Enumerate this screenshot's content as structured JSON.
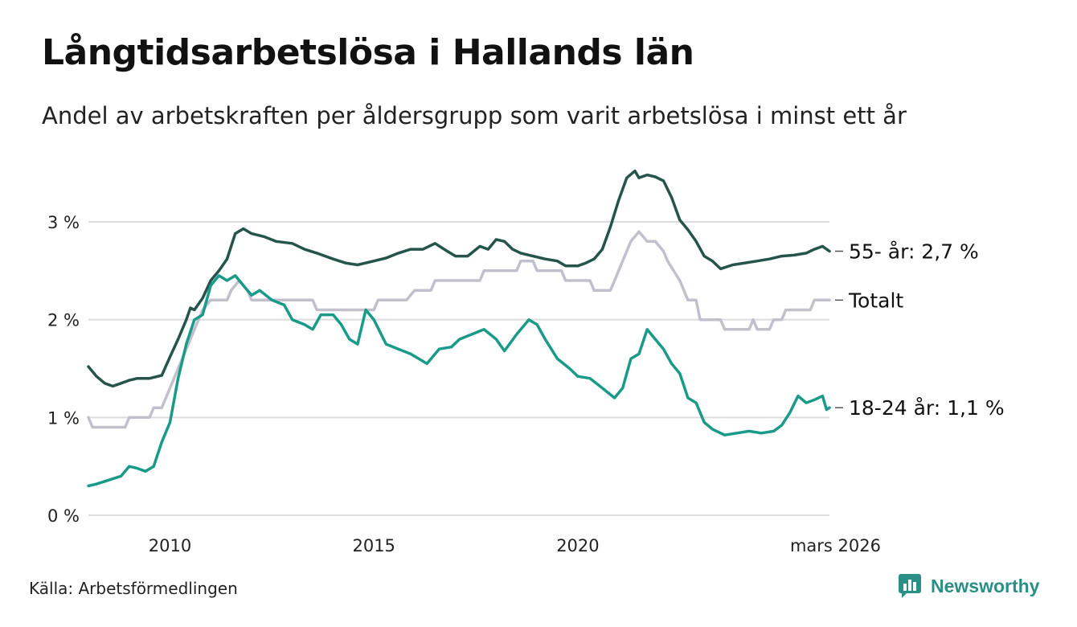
{
  "header": {
    "title": "Långtidsarbetslösa i Hallands län",
    "subtitle": "Andel av arbetskraften per åldersgrupp som varit arbetslösa i minst ett år"
  },
  "footer": {
    "source": "Källa: Arbetsförmedlingen",
    "brand": "Newsworthy"
  },
  "colors": {
    "older": "#24544a",
    "total": "#c2c0cc",
    "young": "#1a9a88",
    "grid": "#dddddd",
    "brand": "#2a8f86"
  },
  "icons": [
    "chart-logo-icon"
  ],
  "chart_data": {
    "type": "line",
    "title": "Långtidsarbetslösa i Hallands län",
    "xlabel": "",
    "ylabel": "",
    "xlim": [
      2008.0,
      2026.17
    ],
    "ylim": [
      0,
      3.5
    ],
    "y_ticks": [
      0,
      1,
      2,
      3
    ],
    "y_tick_labels": [
      "0 %",
      "1 %",
      "2 %",
      "3 %"
    ],
    "x_ticks": [
      2010,
      2015,
      2020,
      2026.17
    ],
    "x_tick_labels": [
      "2010",
      "2015",
      "2020",
      "mars 2026"
    ],
    "grid": true,
    "legend": "end-labels-right",
    "series": [
      {
        "name": "55- år",
        "end_label": "55- år: 2,7 %",
        "points": [
          [
            2008.0,
            1.52
          ],
          [
            2008.2,
            1.42
          ],
          [
            2008.4,
            1.35
          ],
          [
            2008.6,
            1.32
          ],
          [
            2008.8,
            1.35
          ],
          [
            2009.0,
            1.38
          ],
          [
            2009.2,
            1.4
          ],
          [
            2009.5,
            1.4
          ],
          [
            2009.8,
            1.43
          ],
          [
            2010.0,
            1.62
          ],
          [
            2010.2,
            1.8
          ],
          [
            2010.4,
            2.0
          ],
          [
            2010.5,
            2.12
          ],
          [
            2010.6,
            2.1
          ],
          [
            2010.8,
            2.22
          ],
          [
            2011.0,
            2.4
          ],
          [
            2011.2,
            2.5
          ],
          [
            2011.4,
            2.62
          ],
          [
            2011.6,
            2.88
          ],
          [
            2011.8,
            2.93
          ],
          [
            2012.0,
            2.88
          ],
          [
            2012.3,
            2.85
          ],
          [
            2012.6,
            2.8
          ],
          [
            2013.0,
            2.78
          ],
          [
            2013.3,
            2.72
          ],
          [
            2013.6,
            2.68
          ],
          [
            2014.0,
            2.62
          ],
          [
            2014.3,
            2.58
          ],
          [
            2014.6,
            2.56
          ],
          [
            2015.0,
            2.6
          ],
          [
            2015.3,
            2.63
          ],
          [
            2015.6,
            2.68
          ],
          [
            2015.9,
            2.72
          ],
          [
            2016.2,
            2.72
          ],
          [
            2016.5,
            2.78
          ],
          [
            2016.8,
            2.7
          ],
          [
            2017.0,
            2.65
          ],
          [
            2017.3,
            2.65
          ],
          [
            2017.6,
            2.75
          ],
          [
            2017.8,
            2.72
          ],
          [
            2018.0,
            2.82
          ],
          [
            2018.2,
            2.8
          ],
          [
            2018.4,
            2.72
          ],
          [
            2018.6,
            2.68
          ],
          [
            2018.9,
            2.65
          ],
          [
            2019.2,
            2.62
          ],
          [
            2019.5,
            2.6
          ],
          [
            2019.7,
            2.55
          ],
          [
            2020.0,
            2.55
          ],
          [
            2020.2,
            2.58
          ],
          [
            2020.4,
            2.62
          ],
          [
            2020.6,
            2.72
          ],
          [
            2020.8,
            2.95
          ],
          [
            2021.0,
            3.22
          ],
          [
            2021.2,
            3.45
          ],
          [
            2021.4,
            3.52
          ],
          [
            2021.5,
            3.45
          ],
          [
            2021.7,
            3.48
          ],
          [
            2021.9,
            3.46
          ],
          [
            2022.1,
            3.42
          ],
          [
            2022.3,
            3.25
          ],
          [
            2022.5,
            3.02
          ],
          [
            2022.7,
            2.92
          ],
          [
            2022.9,
            2.8
          ],
          [
            2023.1,
            2.65
          ],
          [
            2023.3,
            2.6
          ],
          [
            2023.5,
            2.52
          ],
          [
            2023.8,
            2.56
          ],
          [
            2024.1,
            2.58
          ],
          [
            2024.4,
            2.6
          ],
          [
            2024.7,
            2.62
          ],
          [
            2025.0,
            2.65
          ],
          [
            2025.3,
            2.66
          ],
          [
            2025.6,
            2.68
          ],
          [
            2025.8,
            2.72
          ],
          [
            2026.0,
            2.75
          ],
          [
            2026.17,
            2.7
          ]
        ]
      },
      {
        "name": "Totalt",
        "end_label": "Totalt",
        "points": [
          [
            2008.0,
            1.0
          ],
          [
            2008.1,
            0.9
          ],
          [
            2008.9,
            0.9
          ],
          [
            2009.0,
            1.0
          ],
          [
            2009.5,
            1.0
          ],
          [
            2009.6,
            1.1
          ],
          [
            2009.8,
            1.1
          ],
          [
            2010.0,
            1.3
          ],
          [
            2010.2,
            1.5
          ],
          [
            2010.4,
            1.7
          ],
          [
            2010.6,
            1.9
          ],
          [
            2010.8,
            2.1
          ],
          [
            2011.0,
            2.2
          ],
          [
            2011.4,
            2.2
          ],
          [
            2011.5,
            2.3
          ],
          [
            2011.7,
            2.4
          ],
          [
            2011.9,
            2.3
          ],
          [
            2012.0,
            2.2
          ],
          [
            2013.5,
            2.2
          ],
          [
            2013.6,
            2.1
          ],
          [
            2015.0,
            2.1
          ],
          [
            2015.1,
            2.2
          ],
          [
            2015.8,
            2.2
          ],
          [
            2016.0,
            2.3
          ],
          [
            2016.4,
            2.3
          ],
          [
            2016.5,
            2.4
          ],
          [
            2017.6,
            2.4
          ],
          [
            2017.7,
            2.5
          ],
          [
            2018.5,
            2.5
          ],
          [
            2018.6,
            2.6
          ],
          [
            2018.9,
            2.6
          ],
          [
            2019.0,
            2.5
          ],
          [
            2019.6,
            2.5
          ],
          [
            2019.7,
            2.4
          ],
          [
            2020.3,
            2.4
          ],
          [
            2020.4,
            2.3
          ],
          [
            2020.8,
            2.3
          ],
          [
            2020.9,
            2.4
          ],
          [
            2021.1,
            2.6
          ],
          [
            2021.3,
            2.8
          ],
          [
            2021.5,
            2.9
          ],
          [
            2021.7,
            2.8
          ],
          [
            2021.9,
            2.8
          ],
          [
            2022.1,
            2.7
          ],
          [
            2022.2,
            2.6
          ],
          [
            2022.5,
            2.4
          ],
          [
            2022.7,
            2.2
          ],
          [
            2022.9,
            2.2
          ],
          [
            2023.0,
            2.0
          ],
          [
            2023.5,
            2.0
          ],
          [
            2023.6,
            1.9
          ],
          [
            2024.2,
            1.9
          ],
          [
            2024.3,
            2.0
          ],
          [
            2024.4,
            1.9
          ],
          [
            2024.7,
            1.9
          ],
          [
            2024.8,
            2.0
          ],
          [
            2025.0,
            2.0
          ],
          [
            2025.1,
            2.1
          ],
          [
            2025.7,
            2.1
          ],
          [
            2025.8,
            2.2
          ],
          [
            2026.17,
            2.2
          ]
        ]
      },
      {
        "name": "18-24 år",
        "end_label": "18-24 år: 1,1 %",
        "points": [
          [
            2008.0,
            0.3
          ],
          [
            2008.2,
            0.32
          ],
          [
            2008.5,
            0.36
          ],
          [
            2008.8,
            0.4
          ],
          [
            2009.0,
            0.5
          ],
          [
            2009.2,
            0.48
          ],
          [
            2009.4,
            0.45
          ],
          [
            2009.6,
            0.5
          ],
          [
            2009.8,
            0.75
          ],
          [
            2010.0,
            0.95
          ],
          [
            2010.2,
            1.4
          ],
          [
            2010.4,
            1.75
          ],
          [
            2010.6,
            2.0
          ],
          [
            2010.8,
            2.05
          ],
          [
            2011.0,
            2.35
          ],
          [
            2011.2,
            2.45
          ],
          [
            2011.4,
            2.4
          ],
          [
            2011.6,
            2.45
          ],
          [
            2011.8,
            2.35
          ],
          [
            2012.0,
            2.25
          ],
          [
            2012.2,
            2.3
          ],
          [
            2012.5,
            2.2
          ],
          [
            2012.8,
            2.15
          ],
          [
            2013.0,
            2.0
          ],
          [
            2013.3,
            1.95
          ],
          [
            2013.5,
            1.9
          ],
          [
            2013.7,
            2.05
          ],
          [
            2014.0,
            2.05
          ],
          [
            2014.2,
            1.95
          ],
          [
            2014.4,
            1.8
          ],
          [
            2014.6,
            1.75
          ],
          [
            2014.8,
            2.1
          ],
          [
            2015.0,
            2.0
          ],
          [
            2015.3,
            1.75
          ],
          [
            2015.6,
            1.7
          ],
          [
            2015.9,
            1.65
          ],
          [
            2016.1,
            1.6
          ],
          [
            2016.3,
            1.55
          ],
          [
            2016.6,
            1.7
          ],
          [
            2016.9,
            1.72
          ],
          [
            2017.1,
            1.8
          ],
          [
            2017.4,
            1.85
          ],
          [
            2017.7,
            1.9
          ],
          [
            2018.0,
            1.8
          ],
          [
            2018.2,
            1.68
          ],
          [
            2018.5,
            1.85
          ],
          [
            2018.8,
            2.0
          ],
          [
            2019.0,
            1.95
          ],
          [
            2019.2,
            1.8
          ],
          [
            2019.5,
            1.6
          ],
          [
            2019.8,
            1.5
          ],
          [
            2020.0,
            1.42
          ],
          [
            2020.3,
            1.4
          ],
          [
            2020.6,
            1.3
          ],
          [
            2020.9,
            1.2
          ],
          [
            2021.1,
            1.3
          ],
          [
            2021.3,
            1.6
          ],
          [
            2021.5,
            1.65
          ],
          [
            2021.7,
            1.9
          ],
          [
            2021.9,
            1.8
          ],
          [
            2022.1,
            1.7
          ],
          [
            2022.3,
            1.55
          ],
          [
            2022.5,
            1.45
          ],
          [
            2022.7,
            1.2
          ],
          [
            2022.9,
            1.15
          ],
          [
            2023.1,
            0.95
          ],
          [
            2023.3,
            0.88
          ],
          [
            2023.6,
            0.82
          ],
          [
            2023.9,
            0.84
          ],
          [
            2024.2,
            0.86
          ],
          [
            2024.5,
            0.84
          ],
          [
            2024.8,
            0.86
          ],
          [
            2025.0,
            0.92
          ],
          [
            2025.2,
            1.05
          ],
          [
            2025.4,
            1.22
          ],
          [
            2025.6,
            1.15
          ],
          [
            2025.8,
            1.18
          ],
          [
            2026.0,
            1.22
          ],
          [
            2026.1,
            1.08
          ],
          [
            2026.17,
            1.1
          ]
        ]
      }
    ]
  }
}
